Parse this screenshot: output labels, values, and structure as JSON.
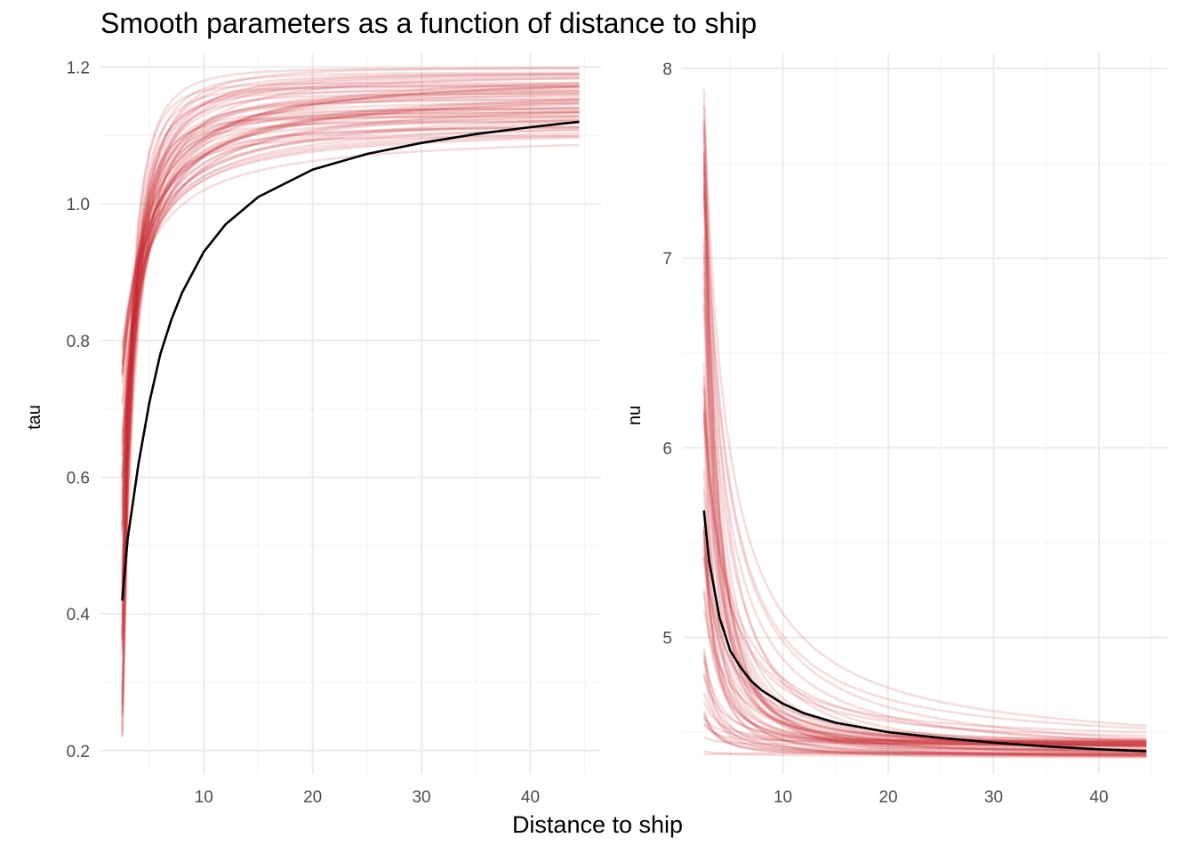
{
  "title": "Smooth parameters as a function of distance to ship",
  "xlabel": "Distance to ship",
  "colors": {
    "draw": "#c8282d",
    "mean": "#000000",
    "grid_major": "#ebebeb",
    "grid_minor": "#f4f4f4"
  },
  "chart_data": [
    {
      "type": "line",
      "name": "tau",
      "ylabel": "tau",
      "xlim": [
        0.5,
        46.5
      ],
      "ylim": [
        0.166,
        1.22
      ],
      "x_ticks": [
        10,
        20,
        30,
        40
      ],
      "x_tick_labels": [
        "10",
        "20",
        "30",
        "40"
      ],
      "y_ticks": [
        0.2,
        0.4,
        0.6,
        0.8,
        1.0,
        1.2
      ],
      "y_tick_labels": [
        "0.2",
        "0.4",
        "0.6",
        "0.8",
        "1.0",
        "1.2"
      ],
      "x_range": [
        2.5,
        44.5
      ],
      "mean_curve": {
        "x": [
          2.5,
          3,
          4,
          5,
          6,
          7,
          8,
          10,
          12,
          15,
          20,
          25,
          30,
          35,
          40,
          44.5
        ],
        "y": [
          0.42,
          0.51,
          0.62,
          0.71,
          0.78,
          0.83,
          0.87,
          0.93,
          0.97,
          1.01,
          1.05,
          1.073,
          1.089,
          1.102,
          1.112,
          1.12
        ]
      },
      "draws_summary": {
        "count": 60,
        "start_range": [
          0.22,
          0.82
        ],
        "end_range": [
          1.08,
          1.16
        ]
      }
    },
    {
      "type": "line",
      "name": "nu",
      "ylabel": "nu",
      "xlim": [
        0.5,
        46.5
      ],
      "ylim": [
        4.28,
        8.08
      ],
      "x_ticks": [
        10,
        20,
        30,
        40
      ],
      "x_tick_labels": [
        "10",
        "20",
        "30",
        "40"
      ],
      "y_ticks": [
        5,
        6,
        7,
        8
      ],
      "y_tick_labels": [
        "5",
        "6",
        "7",
        "8"
      ],
      "x_range": [
        2.5,
        44.5
      ],
      "mean_curve": {
        "x": [
          2.5,
          3,
          4,
          5,
          6,
          7,
          8,
          10,
          12,
          15,
          20,
          25,
          30,
          35,
          40,
          44.5
        ],
        "y": [
          5.67,
          5.4,
          5.1,
          4.93,
          4.84,
          4.77,
          4.72,
          4.65,
          4.6,
          4.55,
          4.5,
          4.47,
          4.445,
          4.425,
          4.41,
          4.4
        ]
      },
      "draws_summary": {
        "count": 60,
        "start_range": [
          4.35,
          7.92
        ],
        "end_range": [
          4.36,
          4.46
        ]
      }
    }
  ]
}
